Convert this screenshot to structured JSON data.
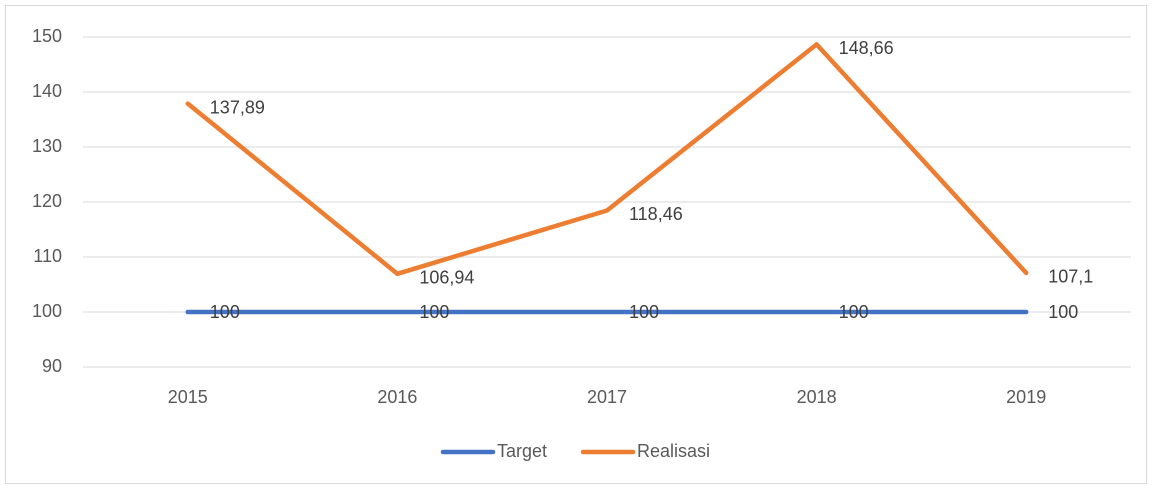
{
  "chart_data": {
    "type": "line",
    "categories": [
      "2015",
      "2016",
      "2017",
      "2018",
      "2019"
    ],
    "series": [
      {
        "name": "Target",
        "color": "#4472c4",
        "values": [
          100,
          100,
          100,
          100,
          100
        ]
      },
      {
        "name": "Realisasi",
        "color": "#ed7d31",
        "values": [
          137.89,
          106.94,
          118.46,
          148.66,
          107.1
        ],
        "value_labels": [
          "137,89",
          "106,94",
          "118,46",
          "148,66",
          "107,1"
        ]
      }
    ],
    "ylim": [
      90,
      150
    ],
    "yticks": [
      90,
      100,
      110,
      120,
      130,
      140,
      150
    ],
    "grid": true,
    "legend": "bottom"
  }
}
